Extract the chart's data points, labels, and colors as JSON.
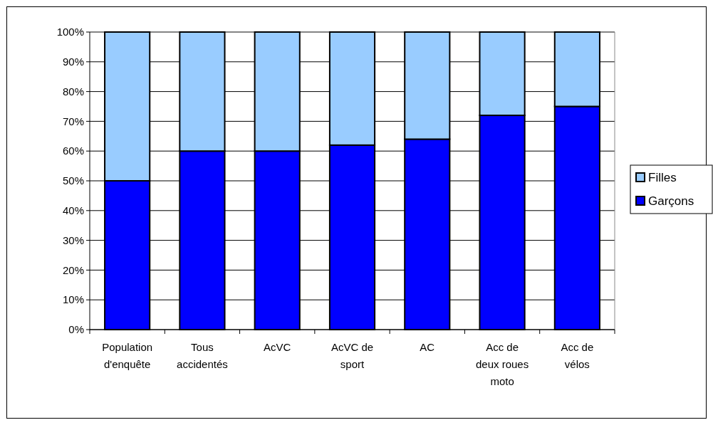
{
  "chart_data": {
    "type": "bar",
    "stacked": true,
    "categories": [
      "Population\nd'enquête",
      "Tous\naccidentés",
      "AcVC",
      "AcVC de\nsport",
      "AC",
      "Acc de\ndeux roues\nmoto",
      "Acc de\nvélos"
    ],
    "series": [
      {
        "name": "Garçons",
        "color": "#0000ff",
        "values": [
          50,
          60,
          60,
          62,
          64,
          72,
          75
        ]
      },
      {
        "name": "Filles",
        "color": "#99ccff",
        "values": [
          50,
          40,
          40,
          38,
          36,
          28,
          25
        ]
      }
    ],
    "ylim": [
      0,
      100
    ],
    "yticks": [
      {
        "value": 0,
        "label": "0%"
      },
      {
        "value": 10,
        "label": "10%"
      },
      {
        "value": 20,
        "label": "20%"
      },
      {
        "value": 30,
        "label": "30%"
      },
      {
        "value": 40,
        "label": "40%"
      },
      {
        "value": 50,
        "label": "50%"
      },
      {
        "value": 60,
        "label": "60%"
      },
      {
        "value": 70,
        "label": "70%"
      },
      {
        "value": 80,
        "label": "80%"
      },
      {
        "value": 90,
        "label": "90%"
      },
      {
        "value": 100,
        "label": "100%"
      }
    ],
    "grid": "y",
    "legend": "right"
  }
}
